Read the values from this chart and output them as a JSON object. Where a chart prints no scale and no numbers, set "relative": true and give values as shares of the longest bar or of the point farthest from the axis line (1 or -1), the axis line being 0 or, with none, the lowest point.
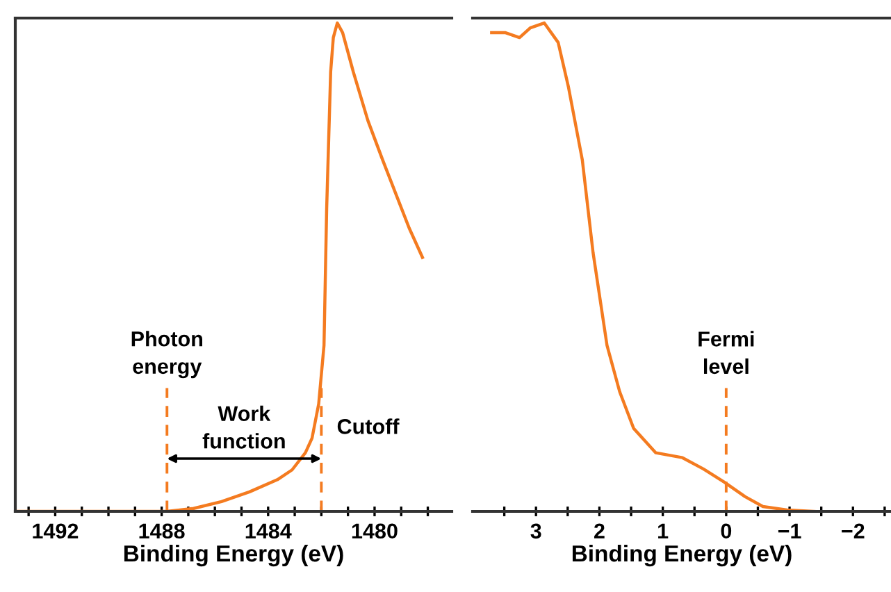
{
  "chart_data": [
    {
      "type": "line",
      "relative": true,
      "xlabel": "Binding Energy (eV)",
      "tick_labels": "x",
      "grid": false,
      "legend": false,
      "xlim": [
        1493.5,
        1477.1
      ],
      "xticks": [
        {
          "value": 1493,
          "label": null
        },
        1492,
        {
          "value": 1491,
          "label": null
        },
        {
          "value": 1490,
          "label": null
        },
        {
          "value": 1489,
          "label": null
        },
        1488,
        {
          "value": 1487,
          "label": null
        },
        {
          "value": 1486,
          "label": null
        },
        {
          "value": 1485,
          "label": null
        },
        1484,
        {
          "value": 1483,
          "label": null
        },
        {
          "value": 1482,
          "label": null
        },
        {
          "value": 1481,
          "label": null
        },
        1480,
        {
          "value": 1479,
          "label": null
        },
        {
          "value": 1478,
          "label": null
        }
      ],
      "series": [
        {
          "color": "#f47b20",
          "x": [
            1493.5,
            1487.8,
            1486.8,
            1485.75,
            1484.7,
            1483.65,
            1483.1,
            1482.6,
            1482.35,
            1482.1,
            1481.9,
            1481.8,
            1481.65,
            1481.55,
            1481.4,
            1481.2,
            1480.8,
            1480.25,
            1479.7,
            1479.2,
            1478.7,
            1478.2
          ],
          "values": [
            0,
            0,
            0.006,
            0.02,
            0.04,
            0.065,
            0.085,
            0.12,
            0.15,
            0.22,
            0.34,
            0.62,
            0.9,
            0.97,
            1.0,
            0.98,
            0.9,
            0.8,
            0.72,
            0.65,
            0.58,
            0.52
          ]
        }
      ],
      "ref_lines": [
        {
          "axis": "x",
          "value": 1487.8,
          "label": "Photon energy",
          "color": "#f47b20",
          "line_style": "dashed"
        },
        {
          "axis": "x",
          "value": 1482.0,
          "label": null,
          "color": "#f47b20",
          "line_style": "dashed"
        }
      ],
      "annotations": [
        "Work function",
        {
          "text": "Cutoff",
          "x": 1482.0,
          "y": 0.17
        }
      ]
    },
    {
      "type": "line",
      "relative": true,
      "xlabel": "Binding Energy (eV)",
      "tick_labels": "x",
      "grid": false,
      "legend": false,
      "xlim": [
        4.0,
        -2.6
      ],
      "xticks": [
        {
          "value": 3.5,
          "label": null
        },
        3,
        {
          "value": 2.5,
          "label": null
        },
        2,
        {
          "value": 1.5,
          "label": null
        },
        1,
        {
          "value": 0.5,
          "label": null
        },
        0,
        {
          "value": -0.5,
          "label": null
        },
        -1,
        {
          "value": -1.5,
          "label": null
        },
        -2,
        {
          "value": -2.5,
          "label": null
        }
      ],
      "series": [
        {
          "color": "#f47b20",
          "x": [
            3.7,
            3.48,
            3.26,
            3.09,
            2.87,
            2.65,
            2.49,
            2.27,
            2.1,
            1.88,
            1.68,
            1.46,
            1.11,
            0.69,
            0.36,
            0.03,
            -0.3,
            -0.58,
            -0.96,
            -1.4
          ],
          "values": [
            0.98,
            0.98,
            0.97,
            0.99,
            1.0,
            0.96,
            0.87,
            0.72,
            0.53,
            0.34,
            0.245,
            0.17,
            0.12,
            0.11,
            0.087,
            0.06,
            0.03,
            0.01,
            0.003,
            0
          ]
        }
      ],
      "ref_lines": [
        {
          "axis": "x",
          "value": 0,
          "label": "Fermi level",
          "color": "#f47b20",
          "line_style": "dashed"
        }
      ]
    }
  ]
}
